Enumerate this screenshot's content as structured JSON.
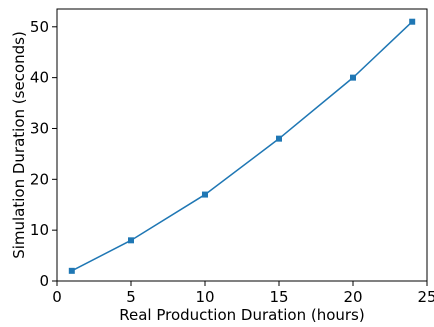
{
  "chart_data": {
    "type": "line",
    "title": "",
    "xlabel": "Real Production Duration (hours)",
    "ylabel": "Simulation Duration (seconds)",
    "xlim": [
      0,
      25
    ],
    "ylim": [
      0,
      53.5
    ],
    "xticks": [
      0,
      5,
      10,
      15,
      20,
      25
    ],
    "yticks": [
      0,
      10,
      20,
      30,
      40,
      50
    ],
    "grid": false,
    "series": [
      {
        "marker": "square",
        "color": "#1f77b4",
        "x": [
          1,
          5,
          10,
          15,
          20,
          24
        ],
        "y": [
          2,
          8,
          17,
          28,
          40,
          51
        ]
      }
    ]
  }
}
